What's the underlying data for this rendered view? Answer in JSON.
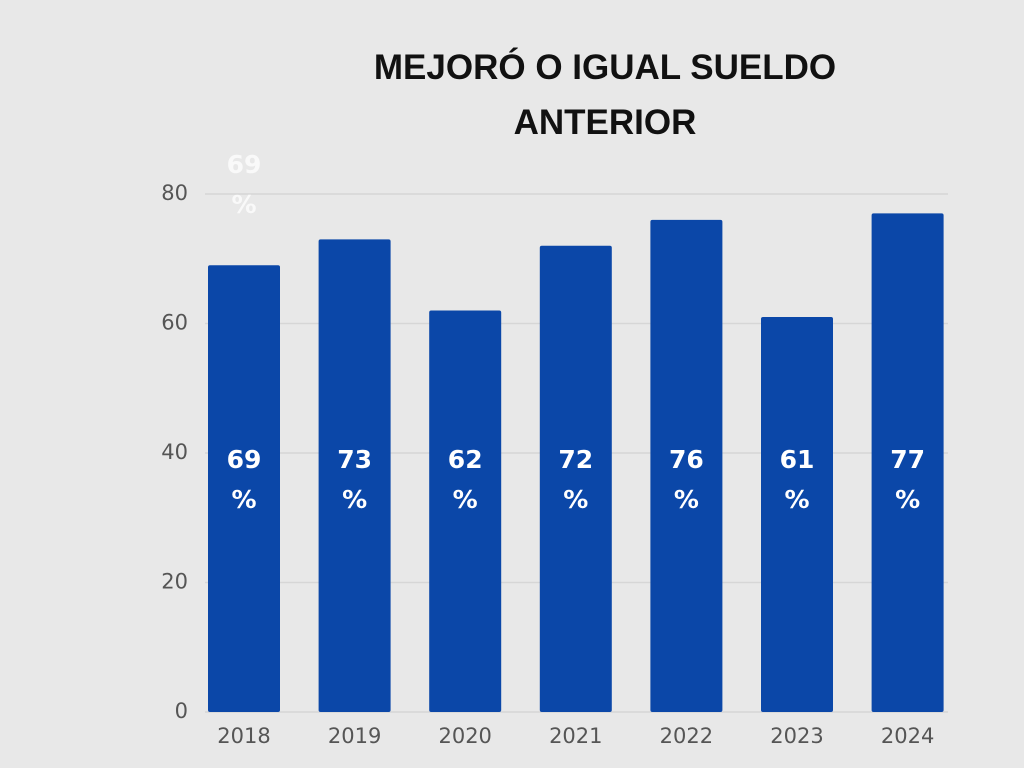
{
  "chart_data": {
    "type": "bar",
    "title": "MEJORÓ O IGUAL SUELDO ANTERIOR",
    "categories": [
      "2018",
      "2019",
      "2020",
      "2021",
      "2022",
      "2023",
      "2024"
    ],
    "values": [
      69,
      73,
      62,
      72,
      76,
      61,
      77
    ],
    "value_labels": [
      "69 %",
      "73 %",
      "62 %",
      "72 %",
      "76 %",
      "61 %",
      "77 %"
    ],
    "color": "#0b47a8",
    "ylim": [
      0,
      80
    ],
    "yticks": [
      0,
      20,
      40,
      60,
      80
    ],
    "grid": true
  }
}
